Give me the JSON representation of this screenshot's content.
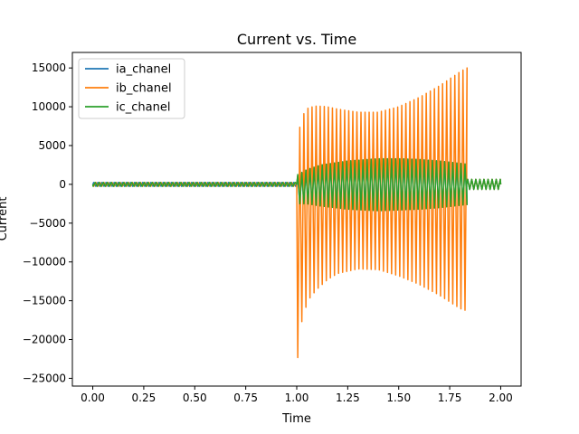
{
  "chart_data": {
    "type": "line",
    "title": "Current vs. Time",
    "xlabel": "Time",
    "ylabel": "Current",
    "xlim": [
      -0.1,
      2.1
    ],
    "ylim": [
      -26000,
      17000
    ],
    "xticks": [
      0.0,
      0.25,
      0.5,
      0.75,
      1.0,
      1.25,
      1.5,
      1.75,
      2.0
    ],
    "xtick_labels": [
      "0.00",
      "0.25",
      "0.50",
      "0.75",
      "1.00",
      "1.25",
      "1.50",
      "1.75",
      "2.00"
    ],
    "yticks": [
      -25000,
      -20000,
      -15000,
      -10000,
      -5000,
      0,
      5000,
      10000,
      15000
    ],
    "ytick_labels": [
      "−25000",
      "−20000",
      "−15000",
      "−10000",
      "−5000",
      "0",
      "5000",
      "10000",
      "15000"
    ],
    "grid": false,
    "legend_position": "upper-left",
    "signal": {
      "frequency_hz": 50,
      "pre_fault_end": 1.0,
      "fault_end": 1.833,
      "end": 2.0,
      "pre_fault_amplitude": 250,
      "post_fault_amplitude": 650
    },
    "series": [
      {
        "name": "ia_chanel",
        "color": "#1f77b4",
        "fault_envelope_time": [
          1.0,
          1.05,
          1.12,
          1.25,
          1.4,
          1.5,
          1.6,
          1.7,
          1.8,
          1.833
        ],
        "fault_envelope_pos": [
          1000,
          1900,
          2500,
          3000,
          3300,
          3300,
          3200,
          3000,
          2700,
          2600
        ],
        "fault_envelope_neg": [
          -2500,
          -2500,
          -2800,
          -3200,
          -3400,
          -3300,
          -3200,
          -3000,
          -2700,
          -2600
        ]
      },
      {
        "name": "ib_chanel",
        "color": "#ff7f0e",
        "fault_envelope_time": [
          1.0,
          1.02,
          1.04,
          1.06,
          1.1,
          1.15,
          1.2,
          1.3,
          1.4,
          1.5,
          1.6,
          1.7,
          1.8,
          1.833
        ],
        "fault_envelope_pos": [
          5700,
          7900,
          9500,
          9900,
          10100,
          10000,
          9700,
          9300,
          9300,
          10000,
          11200,
          12700,
          14500,
          15000
        ],
        "fault_envelope_neg": [
          -23700,
          -18200,
          -16200,
          -14800,
          -13500,
          -12300,
          -11500,
          -10900,
          -11000,
          -11800,
          -12900,
          -14300,
          -16000,
          -16300
        ]
      },
      {
        "name": "ic_chanel",
        "color": "#2ca02c",
        "fault_envelope_time": [
          1.0,
          1.05,
          1.12,
          1.25,
          1.4,
          1.5,
          1.6,
          1.7,
          1.8,
          1.833
        ],
        "fault_envelope_pos": [
          1200,
          1900,
          2500,
          3000,
          3300,
          3300,
          3200,
          3000,
          2700,
          2600
        ],
        "fault_envelope_neg": [
          -2500,
          -2500,
          -2800,
          -3200,
          -3400,
          -3300,
          -3200,
          -3000,
          -2700,
          -2600
        ]
      }
    ]
  }
}
